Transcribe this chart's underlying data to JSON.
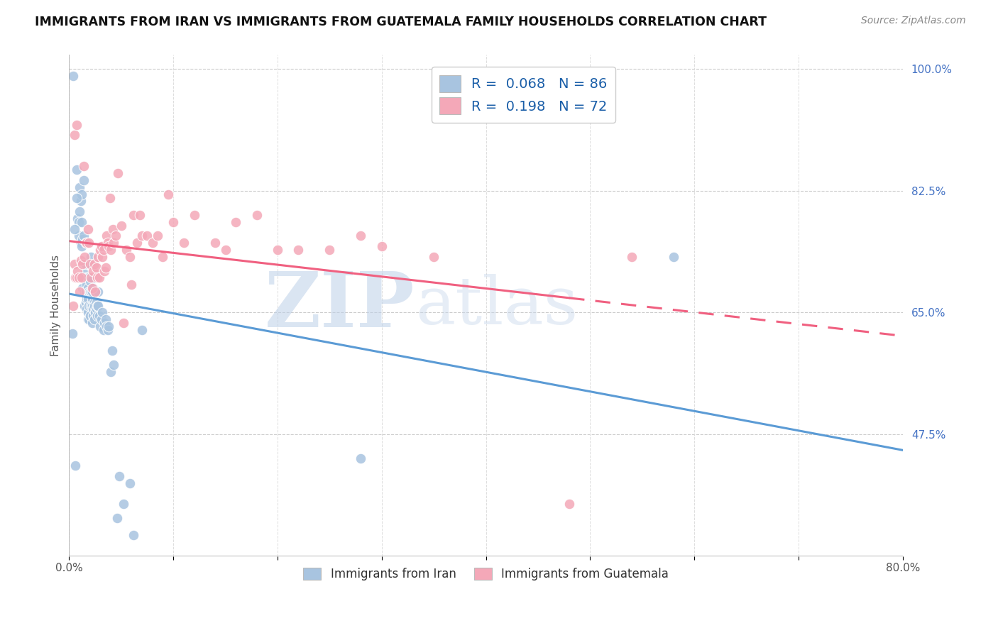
{
  "title": "IMMIGRANTS FROM IRAN VS IMMIGRANTS FROM GUATEMALA FAMILY HOUSEHOLDS CORRELATION CHART",
  "source": "Source: ZipAtlas.com",
  "ylabel": "Family Households",
  "xlim": [
    0.0,
    0.8
  ],
  "ylim": [
    0.3,
    1.02
  ],
  "ytick_labels_right": [
    "100.0%",
    "82.5%",
    "65.0%",
    "47.5%"
  ],
  "ytick_positions_right": [
    1.0,
    0.825,
    0.65,
    0.475
  ],
  "iran_R": 0.068,
  "iran_N": 86,
  "guatemala_R": 0.198,
  "guatemala_N": 72,
  "iran_color": "#a8c4e0",
  "guatemala_color": "#f4a8b8",
  "iran_line_color": "#5b9bd5",
  "guatemala_line_color": "#f06080",
  "watermark_zip": "ZIP",
  "watermark_atlas": "atlas",
  "legend_iran_label": "Immigrants from Iran",
  "legend_guatemala_label": "Immigrants from Guatemala",
  "iran_x": [
    0.004,
    0.007,
    0.008,
    0.009,
    0.009,
    0.01,
    0.01,
    0.011,
    0.011,
    0.012,
    0.012,
    0.012,
    0.013,
    0.013,
    0.014,
    0.014,
    0.015,
    0.015,
    0.015,
    0.016,
    0.016,
    0.016,
    0.016,
    0.017,
    0.017,
    0.017,
    0.017,
    0.018,
    0.018,
    0.018,
    0.018,
    0.018,
    0.019,
    0.019,
    0.019,
    0.019,
    0.02,
    0.02,
    0.02,
    0.02,
    0.021,
    0.021,
    0.021,
    0.022,
    0.022,
    0.022,
    0.022,
    0.023,
    0.023,
    0.023,
    0.024,
    0.024,
    0.024,
    0.025,
    0.025,
    0.026,
    0.026,
    0.027,
    0.027,
    0.028,
    0.028,
    0.029,
    0.03,
    0.031,
    0.032,
    0.033,
    0.034,
    0.035,
    0.036,
    0.037,
    0.038,
    0.04,
    0.041,
    0.043,
    0.046,
    0.048,
    0.052,
    0.058,
    0.062,
    0.07,
    0.28,
    0.58,
    0.003,
    0.005,
    0.006,
    0.007
  ],
  "iran_y": [
    0.99,
    0.855,
    0.785,
    0.78,
    0.76,
    0.795,
    0.83,
    0.75,
    0.81,
    0.78,
    0.745,
    0.82,
    0.755,
    0.685,
    0.84,
    0.76,
    0.68,
    0.705,
    0.66,
    0.7,
    0.72,
    0.665,
    0.68,
    0.69,
    0.655,
    0.67,
    0.75,
    0.685,
    0.64,
    0.67,
    0.65,
    0.7,
    0.7,
    0.64,
    0.68,
    0.66,
    0.68,
    0.645,
    0.695,
    0.72,
    0.68,
    0.73,
    0.66,
    0.66,
    0.635,
    0.67,
    0.68,
    0.645,
    0.655,
    0.685,
    0.64,
    0.665,
    0.66,
    0.68,
    0.65,
    0.665,
    0.655,
    0.66,
    0.645,
    0.66,
    0.68,
    0.645,
    0.63,
    0.64,
    0.65,
    0.625,
    0.635,
    0.64,
    0.63,
    0.625,
    0.63,
    0.565,
    0.595,
    0.575,
    0.355,
    0.415,
    0.375,
    0.405,
    0.33,
    0.625,
    0.44,
    0.73,
    0.62,
    0.77,
    0.43,
    0.815
  ],
  "guatemala_x": [
    0.004,
    0.005,
    0.006,
    0.007,
    0.008,
    0.009,
    0.01,
    0.011,
    0.012,
    0.013,
    0.014,
    0.015,
    0.016,
    0.017,
    0.018,
    0.019,
    0.02,
    0.021,
    0.022,
    0.023,
    0.024,
    0.025,
    0.026,
    0.027,
    0.028,
    0.029,
    0.03,
    0.031,
    0.032,
    0.033,
    0.034,
    0.035,
    0.036,
    0.037,
    0.038,
    0.039,
    0.04,
    0.042,
    0.043,
    0.045,
    0.047,
    0.05,
    0.052,
    0.055,
    0.058,
    0.06,
    0.062,
    0.065,
    0.068,
    0.07,
    0.075,
    0.08,
    0.085,
    0.09,
    0.095,
    0.1,
    0.11,
    0.12,
    0.14,
    0.15,
    0.16,
    0.18,
    0.2,
    0.22,
    0.25,
    0.28,
    0.3,
    0.35,
    0.48,
    0.54,
    0.005,
    0.007
  ],
  "guatemala_y": [
    0.66,
    0.72,
    0.7,
    0.7,
    0.71,
    0.7,
    0.68,
    0.725,
    0.7,
    0.72,
    0.86,
    0.73,
    0.75,
    0.75,
    0.77,
    0.75,
    0.72,
    0.7,
    0.685,
    0.71,
    0.72,
    0.68,
    0.715,
    0.7,
    0.73,
    0.7,
    0.74,
    0.745,
    0.73,
    0.74,
    0.71,
    0.715,
    0.76,
    0.75,
    0.745,
    0.815,
    0.74,
    0.77,
    0.75,
    0.76,
    0.85,
    0.775,
    0.635,
    0.74,
    0.73,
    0.69,
    0.79,
    0.75,
    0.79,
    0.76,
    0.76,
    0.75,
    0.76,
    0.73,
    0.82,
    0.78,
    0.75,
    0.79,
    0.75,
    0.74,
    0.78,
    0.79,
    0.74,
    0.74,
    0.74,
    0.76,
    0.745,
    0.73,
    0.375,
    0.73,
    0.905,
    0.92
  ]
}
